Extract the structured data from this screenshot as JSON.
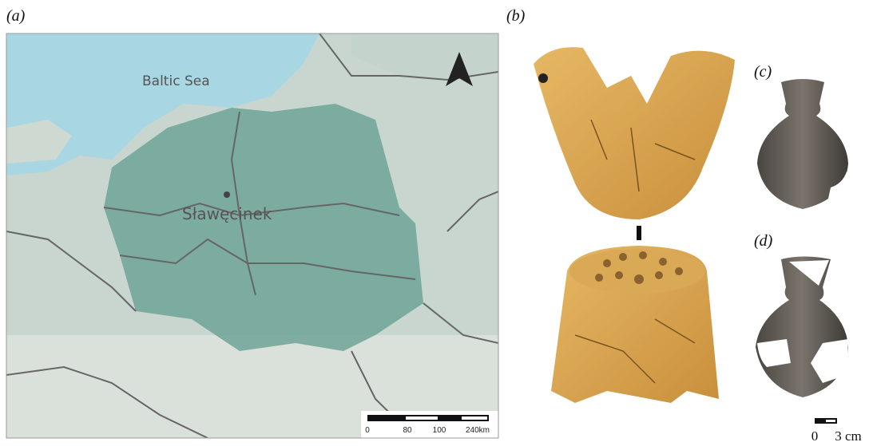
{
  "panel_labels": [
    "(a)",
    "(b)",
    "(c)",
    "(d)"
  ],
  "map": {
    "sea_label": "Baltic Sea",
    "site_label": "Sławęcinek",
    "scale_labels": [
      "0",
      "80",
      "100",
      "240km"
    ]
  },
  "photo_scale": {
    "labels": [
      "0",
      "3 cm"
    ]
  }
}
